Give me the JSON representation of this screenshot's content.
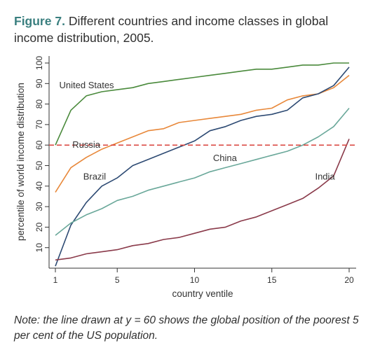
{
  "figure": {
    "label": "Figure 7.",
    "title": "Different countries and income classes in global income distribution, 2005.",
    "note": "Note: the line drawn at y = 60 shows the global position of the poorest 5 per cent of the US population."
  },
  "chart_data": {
    "type": "line",
    "xlabel": "country ventile",
    "ylabel": "percentile of world income distribution",
    "xlim": [
      1,
      20
    ],
    "ylim": [
      0,
      100
    ],
    "xticks": [
      1,
      5,
      10,
      15,
      20
    ],
    "yticks": [
      10,
      20,
      30,
      40,
      50,
      60,
      70,
      80,
      90,
      100
    ],
    "grid": false,
    "x": [
      1,
      2,
      3,
      4,
      5,
      6,
      7,
      8,
      9,
      10,
      11,
      12,
      13,
      14,
      15,
      16,
      17,
      18,
      19,
      20
    ],
    "series": [
      {
        "name": "United States",
        "color": "#4a8a3c",
        "values": [
          60,
          77,
          84,
          86,
          87,
          88,
          90,
          91,
          92,
          93,
          94,
          95,
          96,
          97,
          97,
          98,
          99,
          99,
          100,
          100
        ]
      },
      {
        "name": "Russia",
        "color": "#e8883a",
        "values": [
          37,
          49,
          54,
          58,
          61,
          64,
          67,
          68,
          71,
          72,
          73,
          74,
          75,
          77,
          78,
          82,
          84,
          85,
          88,
          94
        ]
      },
      {
        "name": "Brazil",
        "color": "#2d4a73",
        "values": [
          1,
          21,
          32,
          40,
          44,
          50,
          53,
          56,
          59,
          62,
          67,
          69,
          72,
          74,
          75,
          77,
          83,
          85,
          89,
          98
        ]
      },
      {
        "name": "China",
        "color": "#6aa89a",
        "values": [
          16,
          22,
          26,
          29,
          33,
          35,
          38,
          40,
          42,
          44,
          47,
          49,
          51,
          53,
          55,
          57,
          60,
          64,
          69,
          78
        ]
      },
      {
        "name": "India",
        "color": "#8a3a4a",
        "values": [
          4,
          5,
          7,
          8,
          9,
          11,
          12,
          14,
          15,
          17,
          19,
          20,
          23,
          25,
          28,
          31,
          34,
          39,
          45,
          63
        ]
      }
    ],
    "reference_line": {
      "y": 60,
      "color": "#d9413a",
      "style": "dashed"
    },
    "annotations": [
      {
        "text": "United States",
        "x": 1.25,
        "y": 89,
        "color": "#333333"
      },
      {
        "text": "Russia",
        "x": 2.1,
        "y": 60,
        "color": "#555555"
      },
      {
        "text": "Brazil",
        "x": 2.8,
        "y": 44.5,
        "color": "#333333"
      },
      {
        "text": "China",
        "x": 11.2,
        "y": 53.5,
        "color": "#333333"
      },
      {
        "text": "India",
        "x": 17.8,
        "y": 44.5,
        "color": "#333333"
      }
    ]
  }
}
